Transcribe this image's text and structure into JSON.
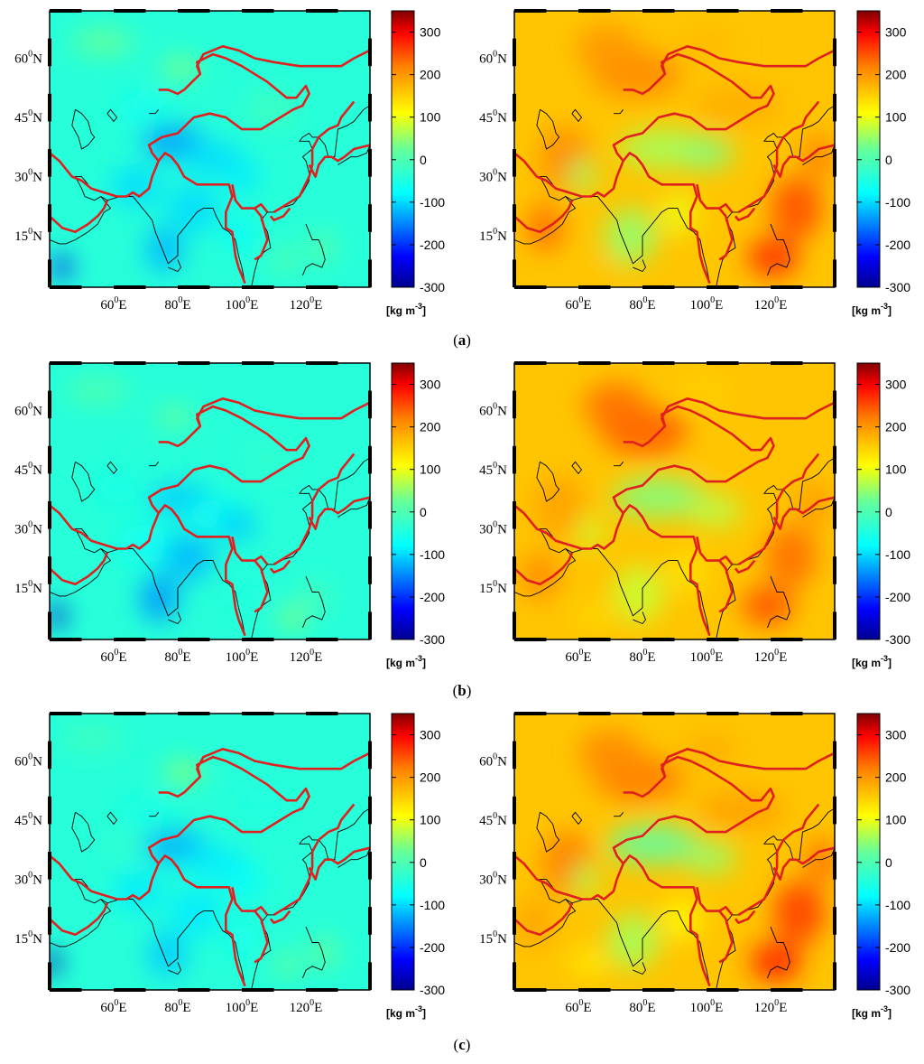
{
  "figure": {
    "rows": [
      {
        "label": "(a)",
        "label_prefix": "(",
        "label_letter": "a",
        "label_suffix": ")"
      },
      {
        "label": "(b)",
        "label_prefix": "(",
        "label_letter": "b",
        "label_suffix": ")"
      },
      {
        "label": "(c)",
        "label_prefix": "(",
        "label_letter": "c",
        "label_suffix": ")"
      }
    ],
    "longitude_ticks": [
      "60°E",
      "80°E",
      "100°E",
      "120°E"
    ],
    "latitude_ticks": [
      "60°N",
      "45°N",
      "30°N",
      "15°N"
    ],
    "colorbar": {
      "ticks": [
        300,
        200,
        100,
        0,
        -100,
        -200,
        -300
      ],
      "tick_labels": [
        "300",
        "200",
        "100",
        "0",
        "-100",
        "-200",
        "-300"
      ],
      "unit": "[kg m⁻³]",
      "unit_text": "[kg m",
      "unit_exp": "-3",
      "unit_close": "]",
      "range": [
        -300,
        350
      ],
      "colormap": "jet",
      "colors": [
        "#00008f",
        "#0000ff",
        "#0080ff",
        "#00ffff",
        "#80ff80",
        "#ffff00",
        "#ff8000",
        "#ff0000",
        "#800000"
      ]
    },
    "map_extent": {
      "lon": [
        40,
        140
      ],
      "lat": [
        2,
        72
      ]
    },
    "overlay_colors": {
      "coastline": "#000000",
      "boundary": "#e02020"
    },
    "panels": [
      {
        "row": 0,
        "col": 0,
        "field": "anomaly",
        "mean_value": -40
      },
      {
        "row": 0,
        "col": 1,
        "field": "density",
        "mean_value": 160
      },
      {
        "row": 1,
        "col": 0,
        "field": "anomaly",
        "mean_value": -40
      },
      {
        "row": 1,
        "col": 1,
        "field": "density",
        "mean_value": 160
      },
      {
        "row": 2,
        "col": 0,
        "field": "anomaly",
        "mean_value": -40
      },
      {
        "row": 2,
        "col": 1,
        "field": "density",
        "mean_value": 160
      }
    ]
  }
}
